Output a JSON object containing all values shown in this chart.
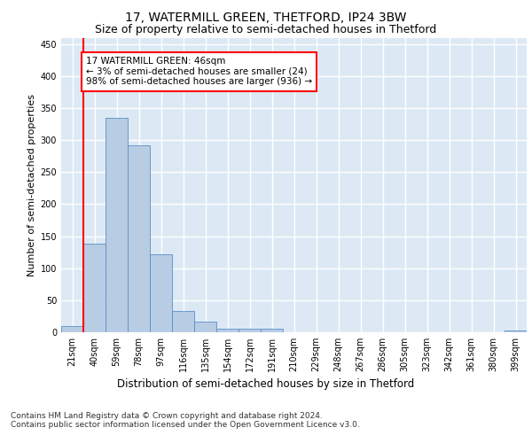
{
  "title_line1": "17, WATERMILL GREEN, THETFORD, IP24 3BW",
  "title_line2": "Size of property relative to semi-detached houses in Thetford",
  "xlabel": "Distribution of semi-detached houses by size in Thetford",
  "ylabel": "Number of semi-detached properties",
  "footer_line1": "Contains HM Land Registry data © Crown copyright and database right 2024.",
  "footer_line2": "Contains public sector information licensed under the Open Government Licence v3.0.",
  "categories": [
    "21sqm",
    "40sqm",
    "59sqm",
    "78sqm",
    "97sqm",
    "116sqm",
    "135sqm",
    "154sqm",
    "172sqm",
    "191sqm",
    "210sqm",
    "229sqm",
    "248sqm",
    "267sqm",
    "286sqm",
    "305sqm",
    "323sqm",
    "342sqm",
    "361sqm",
    "380sqm",
    "399sqm"
  ],
  "values": [
    10,
    138,
    335,
    292,
    122,
    33,
    16,
    6,
    6,
    5,
    0,
    0,
    0,
    0,
    0,
    0,
    0,
    0,
    0,
    0,
    3
  ],
  "bar_color": "#b8cce4",
  "bar_edge_color": "#5a8fc4",
  "bar_width": 1.0,
  "vline_color": "red",
  "vline_x": 0.5,
  "annotation_text": "17 WATERMILL GREEN: 46sqm\n← 3% of semi-detached houses are smaller (24)\n98% of semi-detached houses are larger (936) →",
  "annotation_box_color": "white",
  "annotation_box_edge_color": "red",
  "ylim": [
    0,
    460
  ],
  "yticks": [
    0,
    50,
    100,
    150,
    200,
    250,
    300,
    350,
    400,
    450
  ],
  "plot_bg_color": "#dce9f5",
  "grid_color": "white",
  "title_fontsize": 10,
  "subtitle_fontsize": 9,
  "ylabel_fontsize": 8,
  "xlabel_fontsize": 8.5,
  "tick_fontsize": 7,
  "annotation_fontsize": 7.5,
  "footer_fontsize": 6.5
}
